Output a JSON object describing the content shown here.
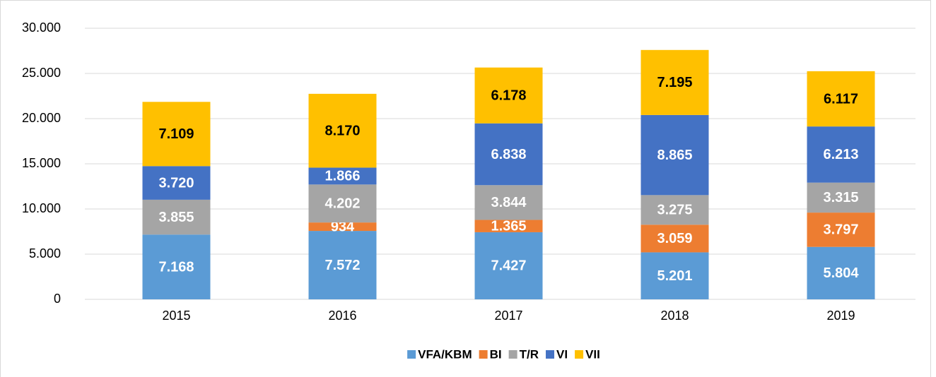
{
  "chart_data": {
    "type": "stacked_bar",
    "categories": [
      "2015",
      "2016",
      "2017",
      "2018",
      "2019"
    ],
    "series": [
      {
        "name": "VFA/KBM",
        "color": "#5b9bd5",
        "label_color": "#ffffff",
        "values": [
          7168,
          7572,
          7427,
          5201,
          5804
        ],
        "value_labels": [
          "7.168",
          "7.572",
          "7.427",
          "5.201",
          "5.804"
        ]
      },
      {
        "name": "BI",
        "color": "#ed7d31",
        "label_color": "#ffffff",
        "values": [
          null,
          934,
          1365,
          3059,
          3797
        ],
        "value_labels": [
          null,
          "934",
          "1.365",
          "3.059",
          "3.797"
        ]
      },
      {
        "name": "T/R",
        "color": "#a5a5a5",
        "label_color": "#ffffff",
        "values": [
          3855,
          4202,
          3844,
          3275,
          3315
        ],
        "value_labels": [
          "3.855",
          "4.202",
          "3.844",
          "3.275",
          "3.315"
        ]
      },
      {
        "name": "VI",
        "color": "#4472c4",
        "label_color": "#ffffff",
        "values": [
          3720,
          1866,
          6838,
          8865,
          6213
        ],
        "value_labels": [
          "3.720",
          "1.866",
          "6.838",
          "8.865",
          "6.213"
        ]
      },
      {
        "name": "VII",
        "color": "#ffc000",
        "label_color": "#000000",
        "values": [
          7109,
          8170,
          6178,
          7195,
          6117
        ],
        "value_labels": [
          "7.109",
          "8.170",
          "6.178",
          "7.195",
          "6.117"
        ]
      }
    ],
    "ylim": [
      0,
      30000
    ],
    "yticks": [
      0,
      {
        "value": 5000,
        "label": "5.000"
      },
      {
        "value": 10000,
        "label": "10.000"
      },
      {
        "value": 15000,
        "label": "15.000"
      },
      {
        "value": 20000,
        "label": "20.000"
      },
      {
        "value": 25000,
        "label": "25.000"
      },
      {
        "value": 30000,
        "label": "30.000"
      }
    ],
    "grid": true,
    "legend": "bottom"
  }
}
